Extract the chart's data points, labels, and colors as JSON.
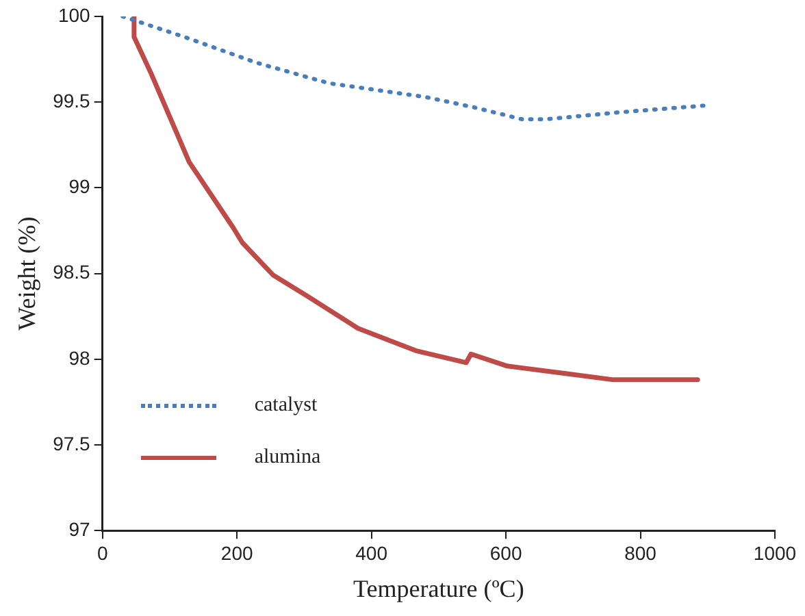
{
  "chart_data": {
    "type": "line",
    "xlabel": "Temperature (ºC)",
    "ylabel": "Weight (%)",
    "xlim": [
      0,
      1000
    ],
    "xticks": [
      0,
      200,
      400,
      600,
      800,
      1000
    ],
    "ylim": [
      97,
      100
    ],
    "yticks": [
      97,
      97.5,
      98,
      98.5,
      99,
      99.5,
      100
    ],
    "grid": false,
    "legend": "bottom left",
    "marker": "none",
    "series": [
      {
        "name": "catalyst",
        "color": "#4a7ebb",
        "line_style": "dotted",
        "x": [
          30,
          122,
          229,
          337,
          480,
          552,
          624,
          660,
          767,
          896
        ],
        "values": [
          100,
          99.88,
          99.73,
          99.61,
          99.53,
          99.47,
          99.4,
          99.4,
          99.44,
          99.48
        ]
      },
      {
        "name": "alumina",
        "color": "#be4b48",
        "line_style": "solid",
        "x": [
          47,
          47,
          72,
          129,
          194,
          208,
          254,
          304,
          380,
          466,
          541,
          548,
          602,
          681,
          760,
          885
        ],
        "values": [
          100,
          99.88,
          99.67,
          99.15,
          98.77,
          98.68,
          98.49,
          98.37,
          98.18,
          98.05,
          97.98,
          98.03,
          97.96,
          97.92,
          97.88,
          97.88
        ]
      }
    ]
  }
}
